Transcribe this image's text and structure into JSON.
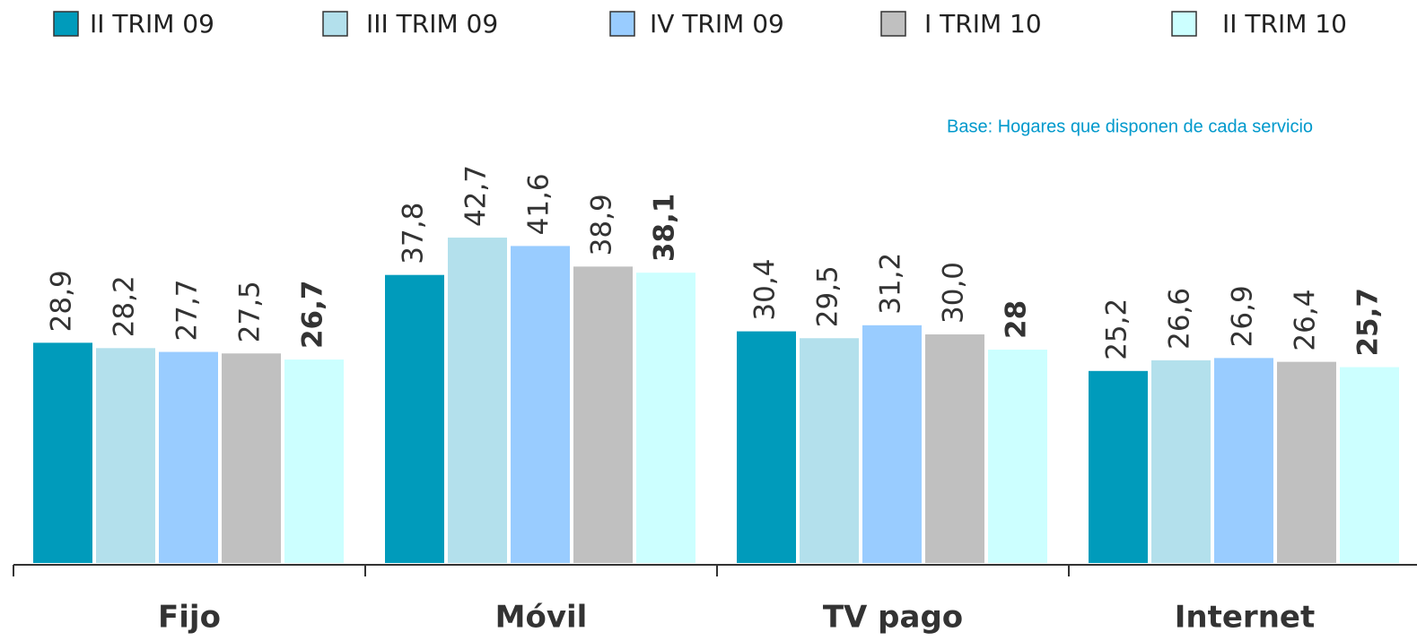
{
  "chart_data": {
    "type": "bar",
    "note": "Base: Hogares que disponen de cada servicio",
    "categories": [
      "Fijo",
      "Móvil",
      "TV pago",
      "Internet"
    ],
    "ylim": [
      0,
      50
    ],
    "series": [
      {
        "name": "II TRIM 09",
        "color": "#009bbb",
        "values": [
          28.9,
          37.8,
          30.4,
          25.2
        ],
        "value_labels": [
          "28,9",
          "37,8",
          "30,4",
          "25,2"
        ]
      },
      {
        "name": "III TRIM 09",
        "color": "#b3e0ec",
        "values": [
          28.2,
          42.7,
          29.5,
          26.6
        ],
        "value_labels": [
          "28,2",
          "42,7",
          "29,5",
          "26,6"
        ]
      },
      {
        "name": "IV TRIM 09",
        "color": "#99ccff",
        "values": [
          27.7,
          41.6,
          31.2,
          26.9
        ],
        "value_labels": [
          "27,7",
          "41,6",
          "31,2",
          "26,9"
        ]
      },
      {
        "name": "I TRIM 10",
        "color": "#c0c0c0",
        "values": [
          27.5,
          38.9,
          30.0,
          26.4
        ],
        "value_labels": [
          "27,5",
          "38,9",
          "30,0",
          "26,4"
        ]
      },
      {
        "name": "II TRIM 10",
        "color": "#ccffff",
        "values": [
          26.7,
          38.1,
          28,
          25.7
        ],
        "value_labels": [
          "26,7",
          "38,1",
          "28",
          "25,7"
        ]
      }
    ]
  }
}
